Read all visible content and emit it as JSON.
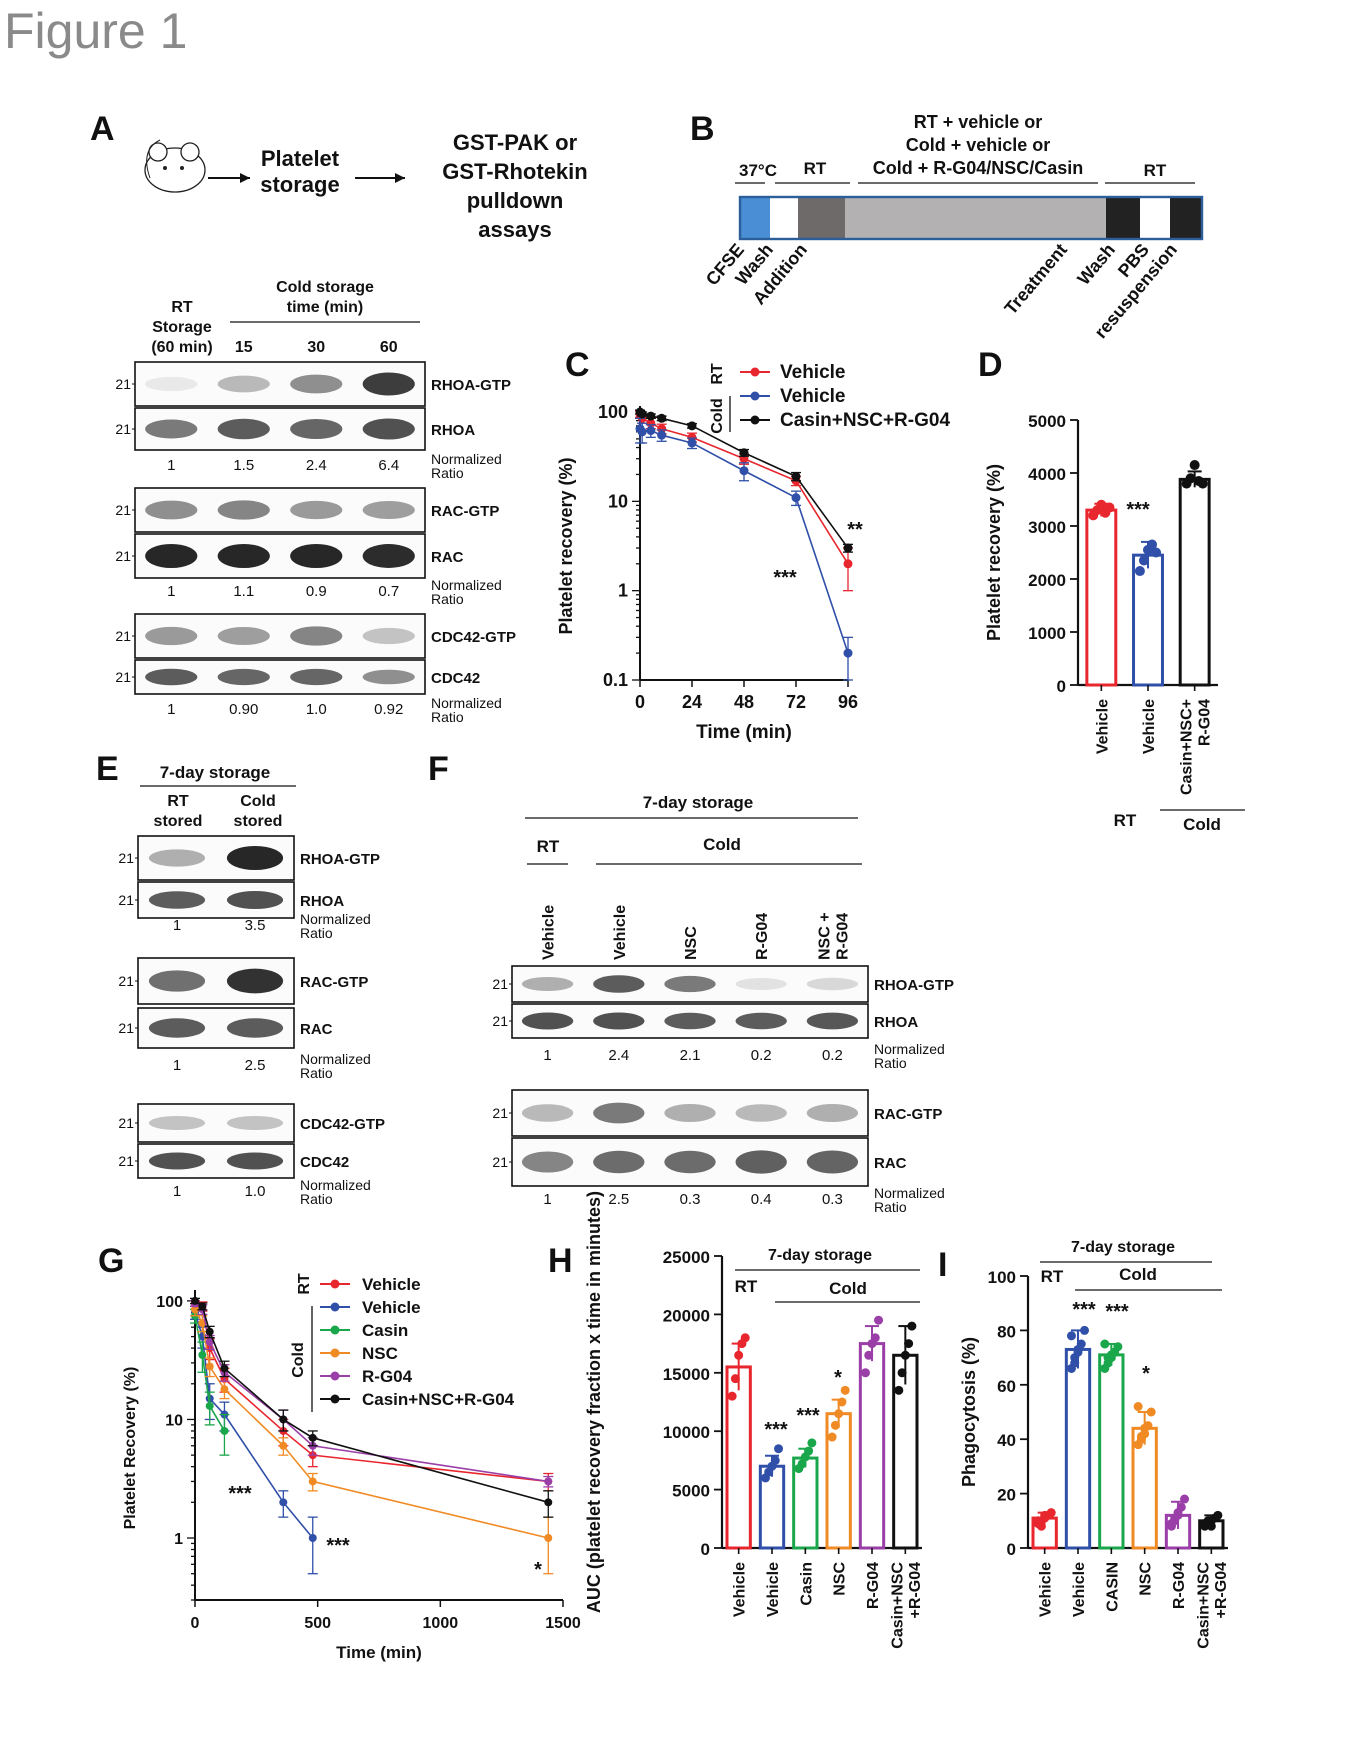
{
  "title": "Figure 1",
  "panelA": {
    "letter": "A",
    "flow": [
      "Platelet",
      "storage",
      "GST-PAK or",
      "GST-Rhotekin",
      "pulldown",
      "assays"
    ],
    "rt_header": [
      "RT",
      "Storage",
      "(60 min)"
    ],
    "cold_header": [
      "Cold storage",
      "time (min)"
    ],
    "times": [
      "15",
      "30",
      "60"
    ],
    "mw": "21",
    "norm": [
      "Normalized",
      "Ratio"
    ],
    "blots": [
      {
        "label": "RHOA-GTP"
      },
      {
        "label": "RHOA"
      },
      {
        "label": "RAC-GTP"
      },
      {
        "label": "RAC"
      },
      {
        "label": "CDC42-GTP"
      },
      {
        "label": "CDC42"
      }
    ],
    "ratios_rhoa": [
      "1",
      "1.5",
      "2.4",
      "6.4"
    ],
    "ratios_rac": [
      "1",
      "1.1",
      "0.9",
      "0.7"
    ],
    "ratios_cdc42": [
      "1",
      "0.90",
      "1.0",
      "0.92"
    ]
  },
  "panelB": {
    "letter": "B",
    "top_lines": [
      "RT + vehicle or",
      "Cold + vehicle or",
      "Cold + R-G04/NSC/Casin"
    ],
    "seg_labels": [
      "37°C",
      "RT",
      "RT"
    ],
    "steps": [
      "CFSE",
      "Wash",
      "Addition",
      "Treatment",
      "Wash",
      "PBS",
      "resuspension"
    ],
    "colors": {
      "cfse": "#4a8fd6",
      "white": "#ffffff",
      "rt": "#6e6a6a",
      "middle": "#b3b1b1",
      "dark": "#222222",
      "border": "#2b5e9a"
    }
  },
  "panelC": {
    "letter": "C",
    "chart_data": {
      "type": "line",
      "xlabel": "Time (min)",
      "ylabel": "Platelet recovery (%)",
      "yscale": "log",
      "ylim": [
        0.1,
        100
      ],
      "xlim": [
        0,
        96
      ],
      "xticks": [
        0,
        24,
        48,
        72,
        96
      ],
      "yticks": [
        0.1,
        1,
        10,
        100
      ],
      "ytick_labels": [
        "0.1",
        "1",
        "10",
        "100"
      ],
      "group_labels": [
        "RT",
        "Cold"
      ],
      "series": [
        {
          "name": "Vehicle",
          "group": "RT",
          "color": "#e8262d",
          "x": [
            0,
            1,
            5,
            10,
            24,
            48,
            72,
            96
          ],
          "y": [
            95,
            85,
            75,
            65,
            52,
            30,
            17,
            2
          ],
          "err": [
            8,
            10,
            10,
            8,
            6,
            4,
            2,
            1
          ]
        },
        {
          "name": "Vehicle",
          "group": "Cold",
          "color": "#2f4fa8",
          "x": [
            0,
            1,
            5,
            10,
            24,
            48,
            72,
            96
          ],
          "y": [
            65,
            60,
            62,
            55,
            45,
            22,
            11,
            0.2
          ],
          "err": [
            20,
            15,
            10,
            8,
            6,
            5,
            2,
            0.1
          ]
        },
        {
          "name": "Casin+NSC+R-G04",
          "group": "Cold",
          "color": "#111111",
          "x": [
            0,
            1,
            5,
            10,
            24,
            48,
            72,
            96
          ],
          "y": [
            100,
            95,
            90,
            85,
            70,
            35,
            19,
            3
          ],
          "err": [
            5,
            5,
            5,
            5,
            4,
            3,
            2,
            0.3
          ]
        }
      ],
      "annotations": [
        "**",
        "***"
      ]
    }
  },
  "panelD": {
    "letter": "D",
    "chart_data": {
      "type": "bar",
      "ylabel": "Platelet recovery (%)",
      "ylim": [
        0,
        5000
      ],
      "yticks": [
        0,
        1000,
        2000,
        3000,
        4000,
        5000
      ],
      "categories": [
        "Vehicle",
        "Vehicle",
        "Casin+NSC+ R-G04"
      ],
      "values": [
        3300,
        2450,
        3880
      ],
      "err": [
        120,
        250,
        150
      ],
      "colors": [
        "#e8262d",
        "#2f4fa8",
        "#111111"
      ],
      "points": [
        [
          3200,
          3300,
          3400,
          3250,
          3350
        ],
        [
          2150,
          2350,
          2550,
          2650,
          2500
        ],
        [
          3800,
          3900,
          4150,
          3850,
          3800
        ]
      ],
      "group_labels": [
        "RT",
        "Cold"
      ],
      "annotations": [
        "***"
      ]
    }
  },
  "panelE": {
    "letter": "E",
    "header": "7-day storage",
    "cols": [
      [
        "RT",
        "stored"
      ],
      [
        "Cold",
        "stored"
      ]
    ],
    "mw": "21",
    "norm": [
      "Normalized",
      "Ratio"
    ],
    "blots": [
      {
        "label": "RHOA-GTP"
      },
      {
        "label": "RHOA"
      },
      {
        "label": "RAC-GTP"
      },
      {
        "label": "RAC"
      },
      {
        "label": "CDC42-GTP"
      },
      {
        "label": "CDC42"
      }
    ],
    "ratios_rhoa": [
      "1",
      "3.5"
    ],
    "ratios_rac": [
      "1",
      "2.5"
    ],
    "ratios_cdc42": [
      "1",
      "1.0"
    ]
  },
  "panelF": {
    "letter": "F",
    "header": "7-day storage",
    "group_labels": [
      "RT",
      "Cold"
    ],
    "lanes": [
      "Vehicle",
      "Vehicle",
      "NSC",
      "R-G04",
      "NSC +\nR-G04"
    ],
    "mw": "21",
    "norm": [
      "Normalized",
      "Ratio"
    ],
    "blots": [
      {
        "label": "RHOA-GTP"
      },
      {
        "label": "RHOA"
      },
      {
        "label": "RAC-GTP"
      },
      {
        "label": "RAC"
      }
    ],
    "ratios_rhoa": [
      "1",
      "2.4",
      "2.1",
      "0.2",
      "0.2"
    ],
    "ratios_rac": [
      "1",
      "2.5",
      "0.3",
      "0.4",
      "0.3"
    ]
  },
  "panelG": {
    "letter": "G",
    "chart_data": {
      "type": "line",
      "xlabel": "Time (min)",
      "ylabel": "Platelet Recovery (%)",
      "yscale": "log",
      "ylim": [
        0.3,
        110
      ],
      "xlim": [
        0,
        1500
      ],
      "xticks": [
        0,
        500,
        1000,
        1500
      ],
      "yticks": [
        1,
        10,
        100
      ],
      "group_labels": [
        "RT",
        "Cold"
      ],
      "series": [
        {
          "name": "Vehicle",
          "group": "RT",
          "color": "#e8262d",
          "x": [
            0,
            30,
            60,
            120,
            360,
            480,
            1440
          ],
          "y": [
            95,
            90,
            40,
            22,
            8,
            5,
            3
          ],
          "err": [
            5,
            8,
            8,
            5,
            2,
            1,
            0.5
          ]
        },
        {
          "name": "Vehicle",
          "group": "Cold",
          "color": "#2f4fa8",
          "x": [
            0,
            30,
            60,
            120,
            360,
            480
          ],
          "y": [
            80,
            50,
            15,
            11,
            2,
            1
          ],
          "err": [
            10,
            10,
            5,
            3,
            0.5,
            0.5
          ]
        },
        {
          "name": "Casin",
          "group": "Cold",
          "color": "#1aa64a",
          "x": [
            0,
            30,
            60,
            120
          ],
          "y": [
            75,
            35,
            13,
            8
          ],
          "err": [
            10,
            10,
            4,
            3
          ]
        },
        {
          "name": "NSC",
          "group": "Cold",
          "color": "#f08a24",
          "x": [
            0,
            30,
            60,
            120,
            360,
            480,
            1440
          ],
          "y": [
            85,
            65,
            28,
            18,
            6,
            3,
            1
          ],
          "err": [
            10,
            10,
            5,
            3,
            1,
            0.5,
            0.5
          ]
        },
        {
          "name": "R-G04",
          "group": "Cold",
          "color": "#9a3ea8",
          "x": [
            0,
            30,
            60,
            120,
            360,
            480,
            1440
          ],
          "y": [
            95,
            85,
            45,
            25,
            10,
            6,
            3
          ],
          "err": [
            5,
            8,
            6,
            4,
            2,
            1,
            0.3
          ]
        },
        {
          "name": "Casin+NSC+R-G04",
          "group": "Cold",
          "color": "#111111",
          "x": [
            0,
            30,
            60,
            120,
            360,
            480,
            1440
          ],
          "y": [
            100,
            90,
            55,
            27,
            10,
            7,
            2
          ],
          "err": [
            5,
            6,
            6,
            4,
            2,
            1,
            0.5
          ]
        }
      ],
      "annotations": [
        "***",
        "***",
        "*"
      ]
    }
  },
  "panelH": {
    "letter": "H",
    "header": "7-day storage",
    "group_labels": [
      "RT",
      "Cold"
    ],
    "chart_data": {
      "type": "bar",
      "ylabel": "AUC (platelet recovery fraction x time in minutes)",
      "ylim": [
        0,
        25000
      ],
      "yticks": [
        0,
        5000,
        10000,
        15000,
        20000,
        25000
      ],
      "categories": [
        "Vehicle",
        "Vehicle",
        "Casin",
        "NSC",
        "R-G04",
        "Casin+NSC +R-G04"
      ],
      "values": [
        15500,
        7000,
        7700,
        11500,
        17500,
        16500
      ],
      "err": [
        2000,
        900,
        800,
        1200,
        1500,
        2500
      ],
      "colors": [
        "#e8262d",
        "#2f4fa8",
        "#1aa64a",
        "#f08a24",
        "#9a3ea8",
        "#111111"
      ],
      "points": [
        [
          13000,
          14500,
          16500,
          17500,
          18000
        ],
        [
          6000,
          6500,
          7000,
          7500,
          8500
        ],
        [
          6800,
          7200,
          7800,
          8300,
          9000
        ],
        [
          9500,
          10500,
          11500,
          12500,
          13500
        ],
        [
          15000,
          16500,
          17500,
          18000,
          19500
        ],
        [
          13500,
          15000,
          16500,
          17500,
          19000
        ]
      ],
      "annotations": [
        "***",
        "***",
        "*"
      ]
    }
  },
  "panelI": {
    "letter": "I",
    "header": "7-day storage",
    "group_labels": [
      "RT",
      "Cold"
    ],
    "chart_data": {
      "type": "bar",
      "ylabel": "Phagocytosis (%)",
      "ylim": [
        0,
        100
      ],
      "yticks": [
        0,
        20,
        40,
        60,
        80,
        100
      ],
      "categories": [
        "Vehicle",
        "Vehicle",
        "CASIN",
        "NSC",
        "R-G04",
        "Casin+NSC +R-G04"
      ],
      "values": [
        11,
        73,
        71,
        44,
        12,
        10
      ],
      "err": [
        2,
        7,
        4,
        6,
        5,
        2
      ],
      "colors": [
        "#e8262d",
        "#2f4fa8",
        "#1aa64a",
        "#f08a24",
        "#9a3ea8",
        "#111111"
      ],
      "points": [
        [
          9,
          10,
          11,
          12,
          13,
          10,
          8,
          12
        ],
        [
          66,
          70,
          73,
          75,
          80,
          78,
          68,
          72
        ],
        [
          66,
          68,
          70,
          72,
          74,
          75,
          70,
          71
        ],
        [
          38,
          40,
          42,
          45,
          50,
          52,
          41,
          44
        ],
        [
          8,
          10,
          12,
          15,
          18,
          9,
          11,
          13
        ],
        [
          8,
          9,
          10,
          11,
          12,
          9,
          10,
          8
        ]
      ],
      "annotations": [
        "***",
        "***",
        "*"
      ]
    }
  }
}
